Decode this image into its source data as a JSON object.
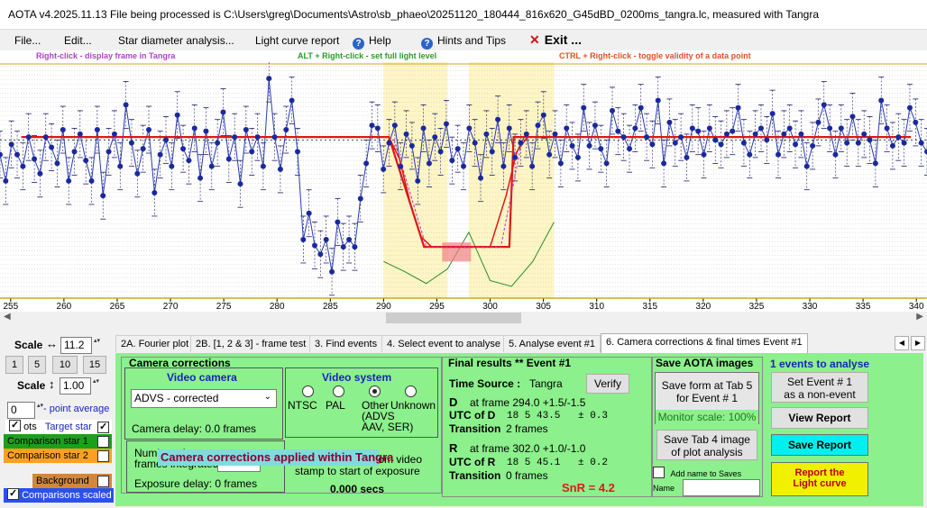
{
  "window": {
    "title": "AOTA v4.2025.11.13    File being processed is C:\\Users\\greg\\Documents\\Astro\\sb_phaeo\\20251120_180444_816x620_G45dBD_0200ms_tangra.lc, measured with Tangra"
  },
  "menu": {
    "file": "File...",
    "edit": "Edit...",
    "star_diameter": "Star diameter analysis...",
    "light_curve_report": "Light curve report",
    "help": "Help",
    "hints": "Hints and Tips",
    "exit": "Exit ..."
  },
  "hints": {
    "right_click": "Right-click  -  display frame in Tangra",
    "alt_right_click": "ALT + Right-click  -  set full light level",
    "ctrl_right_click": "CTRL + Right-click  -  toggle validity of a data point"
  },
  "chart_data": {
    "type": "line",
    "xlim": [
      254,
      341
    ],
    "x_ticks": [
      255,
      260,
      265,
      270,
      275,
      280,
      285,
      290,
      295,
      300,
      305,
      310,
      315,
      320,
      325,
      330,
      335,
      340
    ],
    "highlight_regions": [
      [
        290,
        296
      ],
      [
        298,
        306
      ]
    ],
    "model_curve": {
      "x": [
        256,
        290.5,
        293.8,
        294.2,
        296,
        300,
        301.8,
        302.2,
        339.5
      ],
      "y": [
        0.9,
        0.9,
        0.15,
        0.15,
        0.15,
        0.15,
        0.15,
        0.9,
        0.9
      ]
    },
    "data_y": [
      0.78,
      0.6,
      0.85,
      0.78,
      0.7,
      0.9,
      0.75,
      0.65,
      0.9,
      0.83,
      0.72,
      0.95,
      0.6,
      0.8,
      0.92,
      0.74,
      0.6,
      0.95,
      0.5,
      0.8,
      0.92,
      0.7,
      1.12,
      0.86,
      0.65,
      0.82,
      0.95,
      0.52,
      0.78,
      0.88,
      0.7,
      1.05,
      0.82,
      0.74,
      0.96,
      0.62,
      0.94,
      0.7,
      0.86,
      1.07,
      0.75,
      0.9,
      0.58,
      0.95,
      0.8,
      0.9,
      0.7,
      1.3,
      0.9,
      0.68,
      0.95,
      1.15,
      0.8,
      0.2,
      0.38,
      0.16,
      0.1,
      0.2,
      -0.02,
      0.32,
      0.15,
      0.2,
      0.15,
      0.48,
      0.72,
      0.98,
      0.96,
      0.68,
      0.86,
      0.98,
      0.7,
      0.92,
      0.84,
      0.6,
      0.96,
      0.72,
      0.9,
      0.8,
      0.99,
      0.74,
      0.82,
      0.7,
      0.96,
      0.86,
      0.62,
      0.92,
      0.8,
      1.02,
      0.7,
      0.96,
      0.76,
      0.86,
      0.92,
      0.7,
      0.98,
      1.05,
      0.78,
      0.92,
      0.72,
      0.96,
      0.84,
      0.76,
      1.1,
      0.84,
      0.98,
      0.82,
      0.72,
      1.08,
      0.94,
      0.9,
      0.82,
      0.96,
      1.1,
      0.9,
      0.85,
      1.15,
      0.72,
      1.0,
      0.86,
      0.9,
      0.76,
      0.96,
      0.94,
      0.78,
      0.96,
      0.88,
      0.85,
      0.92,
      0.94,
      1.1,
      0.86,
      0.78,
      0.92,
      0.96,
      0.88,
      1.06,
      0.78,
      0.92,
      0.96,
      0.85,
      0.92,
      0.7,
      0.84,
      1.0,
      1.12,
      0.96,
      0.78,
      0.96,
      0.86,
      1.04,
      0.86,
      0.92,
      0.88,
      0.72,
      1.15,
      0.96,
      0.84,
      0.9,
      0.86,
      1.1,
      1.0,
      0.86,
      0.8
    ]
  },
  "left_panel": {
    "scale_h_label": "Scale",
    "scale_h_value": "11.2",
    "scale_buttons": [
      "1",
      "5",
      "10",
      "15"
    ],
    "scale_v_label": "Scale",
    "scale_v_value": "1.00",
    "avg_value": "0",
    "avg_label": "- point average",
    "target_prefix": "ots",
    "target_label": "Target star",
    "comp1_label": "Comparison star 1",
    "comp2_label": "Comparison star 2",
    "background_label": "Background",
    "comps_scaled_label": "Comparisons scaled"
  },
  "tabs": [
    "2A. Fourier plot",
    "2B. [1, 2 & 3] - frame test",
    "3. Find events",
    "4. Select event to analyse",
    "5. Analyse event #1",
    "6. Camera corrections & final times Event #1"
  ],
  "camera": {
    "title": "Camera corrections",
    "video_camera": "Video camera",
    "camera_select": "ADVS - corrected",
    "camera_delay": "Camera delay: 0.0 frames",
    "num_frames": "Number of",
    "frames_integrated": "frames integrated",
    "overlay": "Camera corrections applied within Tangra",
    "exposure_delay": "Exposure delay: 0 frames",
    "video_system": "Video system",
    "ntsc": "NTSC",
    "pal": "PAL",
    "other": "Other",
    "other_detail1": "(ADVS",
    "other_detail2": "AAV, SER)",
    "unknown": "Unknown",
    "from_video": "from video",
    "stamp_to_start": "stamp to start of exposure",
    "secs": "0.000 secs"
  },
  "final": {
    "title": "Final results  **  Event #1",
    "time_source_label": "Time Source :",
    "time_source_value": "Tangra",
    "verify": "Verify",
    "d_label": "D",
    "d_frame": "at frame 294.0  +1.5/-1.5",
    "utc_d_label": "UTC of D",
    "utc_d_value": "18  5 43.5",
    "utc_d_err": "± 0.3",
    "trans_d_label": "Transition",
    "trans_d_value": "2 frames",
    "r_label": "R",
    "r_frame": "at frame 302.0  +1.0/-1.0",
    "utc_r_label": "UTC of R",
    "utc_r_value": "18  5 45.1",
    "utc_r_err": "± 0.2",
    "trans_r_label": "Transition",
    "trans_r_value": "0 frames",
    "snr": "SnR = 4.2"
  },
  "save": {
    "title": "Save AOTA images",
    "save_form_1": "Save form at Tab 5",
    "save_form_2": "for Event # 1",
    "monitor_scale": "Monitor scale: 100%",
    "save_tab4_1": "Save Tab 4 image",
    "save_tab4_2": "of plot analysis",
    "add_name": "Add name to Saves",
    "name_label": "Name"
  },
  "events": {
    "title": "1  events to analyse",
    "set_event_1": "Set Event # 1",
    "set_event_2": "as a non-event",
    "view_report": "View Report",
    "save_report": "Save Report",
    "report_lc_1": "Report the",
    "report_lc_2": "Light curve"
  }
}
